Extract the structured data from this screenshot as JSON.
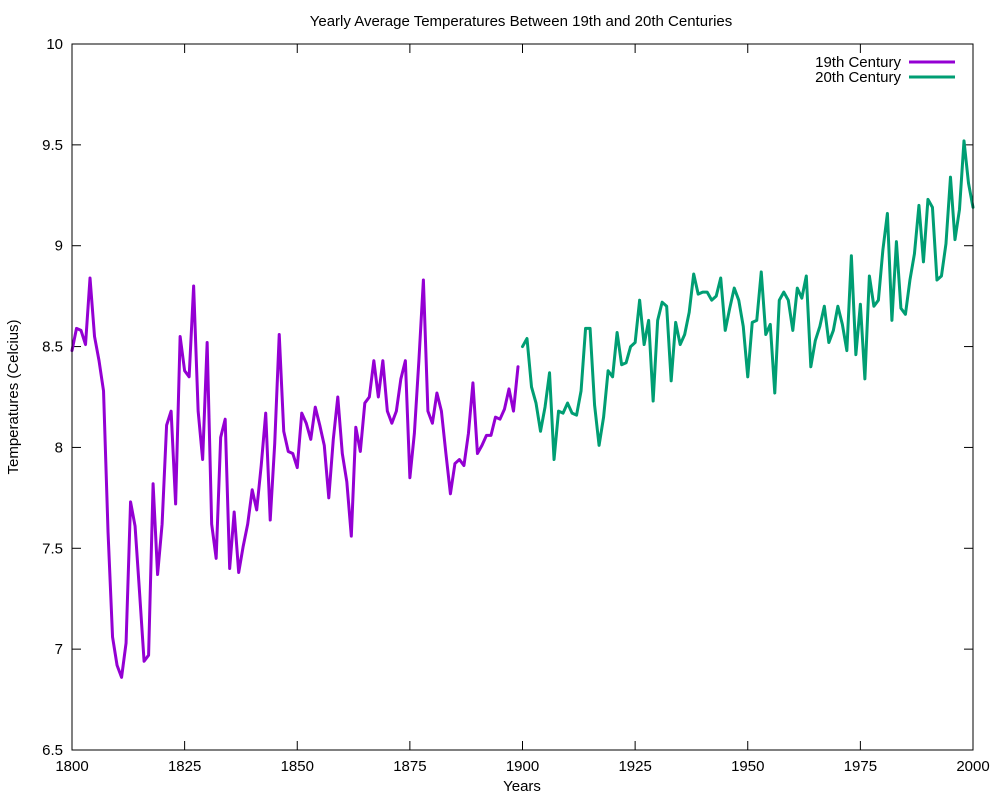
{
  "chart_data": {
    "type": "line",
    "title": "Yearly Average Temperatures Between 19th and 20th Centuries",
    "xlabel": "Years",
    "ylabel": "Temperatures (Celcius)",
    "xlim": [
      1800,
      2000
    ],
    "ylim": [
      6.5,
      10
    ],
    "grid": false,
    "legend_position": "top-right",
    "x_ticks": [
      {
        "value": 1800,
        "label": "1800"
      },
      {
        "value": 1825,
        "label": "1825"
      },
      {
        "value": 1850,
        "label": "1850"
      },
      {
        "value": 1875,
        "label": "1875"
      },
      {
        "value": 1900,
        "label": "1900"
      },
      {
        "value": 1925,
        "label": "1925"
      },
      {
        "value": 1950,
        "label": "1950"
      },
      {
        "value": 1975,
        "label": "1975"
      },
      {
        "value": 2000,
        "label": "2000"
      }
    ],
    "y_ticks": [
      {
        "value": 6.5,
        "label": "6.5"
      },
      {
        "value": 7,
        "label": "7"
      },
      {
        "value": 7.5,
        "label": "7.5"
      },
      {
        "value": 8,
        "label": "8"
      },
      {
        "value": 8.5,
        "label": "8.5"
      },
      {
        "value": 9,
        "label": "9"
      },
      {
        "value": 9.5,
        "label": "9.5"
      },
      {
        "value": 10,
        "label": "10"
      }
    ],
    "series": [
      {
        "name": "19th Century",
        "color": "#9400d3",
        "x": [
          1800,
          1801,
          1802,
          1803,
          1804,
          1805,
          1806,
          1807,
          1808,
          1809,
          1810,
          1811,
          1812,
          1813,
          1814,
          1815,
          1816,
          1817,
          1818,
          1819,
          1820,
          1821,
          1822,
          1823,
          1824,
          1825,
          1826,
          1827,
          1828,
          1829,
          1830,
          1831,
          1832,
          1833,
          1834,
          1835,
          1836,
          1837,
          1838,
          1839,
          1840,
          1841,
          1842,
          1843,
          1844,
          1845,
          1846,
          1847,
          1848,
          1849,
          1850,
          1851,
          1852,
          1853,
          1854,
          1855,
          1856,
          1857,
          1858,
          1859,
          1860,
          1861,
          1862,
          1863,
          1864,
          1865,
          1866,
          1867,
          1868,
          1869,
          1870,
          1871,
          1872,
          1873,
          1874,
          1875,
          1876,
          1877,
          1878,
          1879,
          1880,
          1881,
          1882,
          1883,
          1884,
          1885,
          1886,
          1887,
          1888,
          1889,
          1890,
          1891,
          1892,
          1893,
          1894,
          1895,
          1896,
          1897,
          1898,
          1899
        ],
        "values": [
          8.48,
          8.59,
          8.58,
          8.51,
          8.84,
          8.55,
          8.43,
          8.28,
          7.58,
          7.06,
          6.92,
          6.86,
          7.03,
          7.73,
          7.61,
          7.28,
          6.94,
          6.97,
          7.82,
          7.37,
          7.62,
          8.11,
          8.18,
          7.72,
          8.55,
          8.38,
          8.35,
          8.8,
          8.18,
          7.94,
          8.52,
          7.62,
          7.45,
          8.05,
          8.14,
          7.4,
          7.68,
          7.38,
          7.51,
          7.62,
          7.79,
          7.69,
          7.91,
          8.17,
          7.64,
          8.02,
          8.56,
          8.08,
          7.98,
          7.97,
          7.9,
          8.17,
          8.12,
          8.04,
          8.2,
          8.11,
          8.01,
          7.75,
          8.04,
          8.25,
          7.97,
          7.83,
          7.56,
          8.1,
          7.98,
          8.22,
          8.25,
          8.43,
          8.25,
          8.43,
          8.18,
          8.12,
          8.18,
          8.34,
          8.43,
          7.85,
          8.07,
          8.43,
          8.83,
          8.18,
          8.12,
          8.27,
          8.18,
          7.97,
          7.77,
          7.92,
          7.94,
          7.91,
          8.07,
          8.32,
          7.97,
          8.01,
          8.06,
          8.06,
          8.15,
          8.14,
          8.19,
          8.29,
          8.18,
          8.4
        ]
      },
      {
        "name": "20th Century",
        "color": "#009e73",
        "x": [
          1900,
          1901,
          1902,
          1903,
          1904,
          1905,
          1906,
          1907,
          1908,
          1909,
          1910,
          1911,
          1912,
          1913,
          1914,
          1915,
          1916,
          1917,
          1918,
          1919,
          1920,
          1921,
          1922,
          1923,
          1924,
          1925,
          1926,
          1927,
          1928,
          1929,
          1930,
          1931,
          1932,
          1933,
          1934,
          1935,
          1936,
          1937,
          1938,
          1939,
          1940,
          1941,
          1942,
          1943,
          1944,
          1945,
          1946,
          1947,
          1948,
          1949,
          1950,
          1951,
          1952,
          1953,
          1954,
          1955,
          1956,
          1957,
          1958,
          1959,
          1960,
          1961,
          1962,
          1963,
          1964,
          1965,
          1966,
          1967,
          1968,
          1969,
          1970,
          1971,
          1972,
          1973,
          1974,
          1975,
          1976,
          1977,
          1978,
          1979,
          1980,
          1981,
          1982,
          1983,
          1984,
          1985,
          1986,
          1987,
          1988,
          1989,
          1990,
          1991,
          1992,
          1993,
          1994,
          1995,
          1996,
          1997,
          1998,
          1999,
          2000
        ],
        "values": [
          8.5,
          8.54,
          8.3,
          8.22,
          8.08,
          8.2,
          8.37,
          7.94,
          8.18,
          8.17,
          8.22,
          8.17,
          8.16,
          8.28,
          8.59,
          8.59,
          8.21,
          8.01,
          8.15,
          8.38,
          8.35,
          8.57,
          8.41,
          8.42,
          8.5,
          8.52,
          8.73,
          8.51,
          8.63,
          8.23,
          8.63,
          8.72,
          8.7,
          8.33,
          8.62,
          8.51,
          8.56,
          8.67,
          8.86,
          8.76,
          8.77,
          8.77,
          8.73,
          8.75,
          8.84,
          8.58,
          8.69,
          8.79,
          8.73,
          8.6,
          8.35,
          8.62,
          8.63,
          8.87,
          8.56,
          8.61,
          8.27,
          8.73,
          8.77,
          8.73,
          8.58,
          8.79,
          8.74,
          8.85,
          8.4,
          8.53,
          8.6,
          8.7,
          8.52,
          8.58,
          8.7,
          8.61,
          8.48,
          8.95,
          8.46,
          8.71,
          8.34,
          8.85,
          8.7,
          8.73,
          8.98,
          9.16,
          8.63,
          9.02,
          8.69,
          8.66,
          8.83,
          8.96,
          9.2,
          8.92,
          9.23,
          9.19,
          8.83,
          8.85,
          9.01,
          9.34,
          9.03,
          9.18,
          9.52,
          9.31,
          9.19
        ]
      }
    ]
  }
}
